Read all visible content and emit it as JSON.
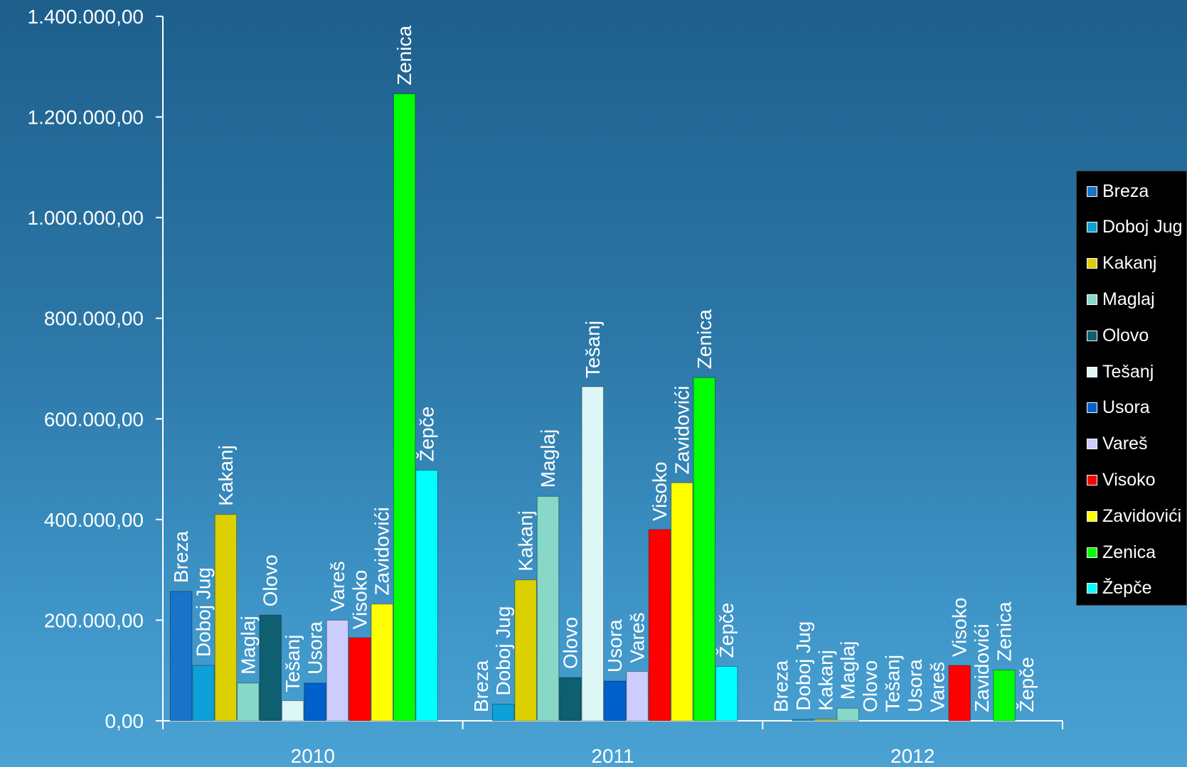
{
  "chart_data": {
    "type": "bar",
    "categories": [
      "2010",
      "2011",
      "2012"
    ],
    "ylim": [
      0,
      1400000
    ],
    "yticks": [
      0,
      200000,
      400000,
      600000,
      800000,
      1000000,
      1200000,
      1400000
    ],
    "ytick_labels": [
      "0,00",
      "200.000,00",
      "400.000,00",
      "600.000,00",
      "800.000,00",
      "1.000.000,00",
      "1.200.000,00",
      "1.400.000,00"
    ],
    "grid": false,
    "legend_position": "right",
    "data_labels": "series name, rotated vertical",
    "series": [
      {
        "name": "Breza",
        "color": "#1874c8",
        "values": [
          257000,
          0,
          0
        ]
      },
      {
        "name": "Doboj Jug",
        "color": "#0ea0d8",
        "values": [
          110000,
          33000,
          3000
        ]
      },
      {
        "name": "Kakanj",
        "color": "#ddd000",
        "values": [
          410000,
          280000,
          3000
        ]
      },
      {
        "name": "Maglaj",
        "color": "#88d8c8",
        "values": [
          75000,
          446000,
          25000
        ]
      },
      {
        "name": "Olovo",
        "color": "#0e5f70",
        "values": [
          210000,
          86000,
          0
        ]
      },
      {
        "name": "Tešanj",
        "color": "#ddf6f6",
        "values": [
          40000,
          664000,
          0
        ]
      },
      {
        "name": "Usora",
        "color": "#0060cc",
        "values": [
          75000,
          79000,
          0
        ]
      },
      {
        "name": "Vareš",
        "color": "#ccccff",
        "values": [
          200000,
          98000,
          0
        ]
      },
      {
        "name": "Visoko",
        "color": "#ff0000",
        "values": [
          165000,
          380000,
          110000
        ]
      },
      {
        "name": "Zavidovići",
        "color": "#ffff00",
        "values": [
          232000,
          473000,
          0
        ]
      },
      {
        "name": "Zenica",
        "color": "#00ff00",
        "values": [
          1246000,
          682000,
          101000
        ]
      },
      {
        "name": "Žepče",
        "color": "#00ffff",
        "values": [
          498000,
          108000,
          0
        ]
      }
    ]
  }
}
